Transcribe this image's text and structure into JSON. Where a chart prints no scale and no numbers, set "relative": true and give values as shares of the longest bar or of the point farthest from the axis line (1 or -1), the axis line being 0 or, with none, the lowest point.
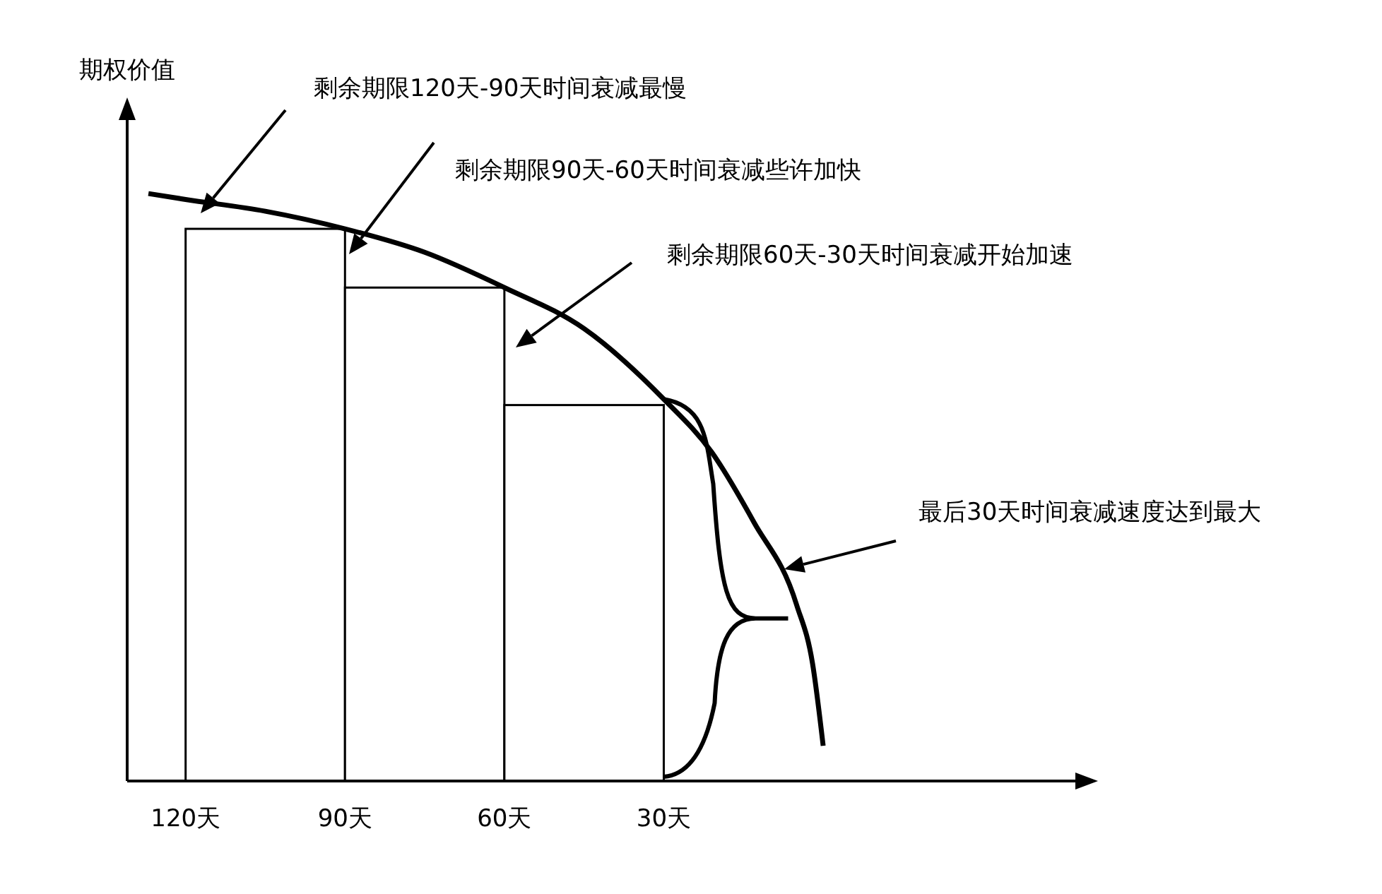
{
  "chart_data": {
    "type": "line",
    "ylabel": "期权价值",
    "relative": true,
    "xlim": [
      131,
      -48
    ],
    "xticks": [
      {
        "value": 120,
        "label": "120天"
      },
      {
        "value": 90,
        "label": "90天"
      },
      {
        "value": 60,
        "label": "60天"
      },
      {
        "value": 30,
        "label": "30天"
      }
    ],
    "grid": false,
    "legend": false,
    "marker": "none",
    "series": [
      {
        "type": "bar",
        "color": "#000000",
        "x": [
          105,
          75,
          45
        ],
        "values": [
          0.94,
          0.84,
          0.64
        ]
      },
      {
        "color": "#000000",
        "x": [
          127,
          120,
          105,
          90,
          75,
          60,
          45,
          30,
          21,
          13,
          5,
          2,
          0
        ],
        "values": [
          1,
          0.99,
          0.97,
          0.94,
          0.9,
          0.84,
          0.77,
          0.65,
          0.56,
          0.44,
          0.3,
          0.2,
          0.06
        ]
      }
    ],
    "annotations": [
      "剩余期限120天-90天时间衰减最慢",
      "剩余期限90天-60天时间衰减些许加快",
      "剩余期限60天-30天时间衰减开始加速",
      "最后30天时间衰减速度达到最大"
    ]
  }
}
